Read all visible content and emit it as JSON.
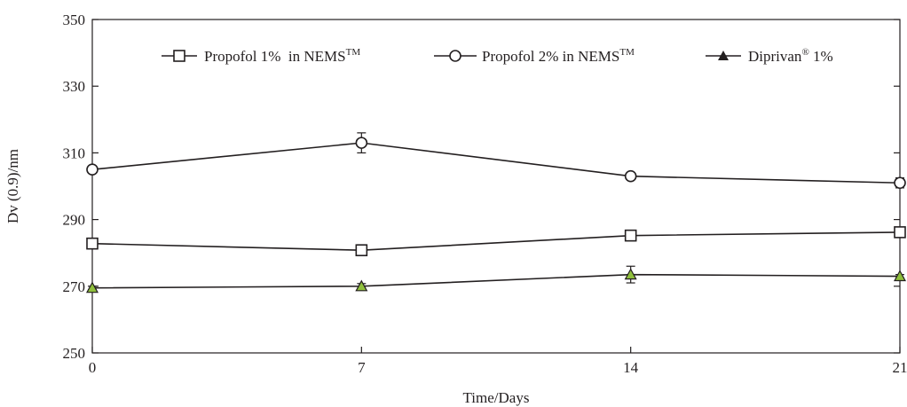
{
  "chart_data": {
    "type": "line",
    "title": "",
    "xlabel": "Time/Days",
    "ylabel": "Dv (0.9)/nm",
    "x": [
      0,
      7,
      14,
      21
    ],
    "x_ticks": [
      "0",
      "7",
      "14",
      "21"
    ],
    "y_ticks": [
      "250",
      "270",
      "290",
      "310",
      "330",
      "350"
    ],
    "xlim": [
      0,
      21
    ],
    "ylim": [
      250,
      350
    ],
    "grid": false,
    "legend_position": "top",
    "series": [
      {
        "name": "Propofol 1%  in NEMS",
        "name_sup": "TM",
        "marker": "square",
        "marker_fill": "#ffffff",
        "color": "#231f20",
        "values": [
          282.8,
          280.8,
          285.2,
          286.2
        ],
        "errors": [
          0.8,
          0.8,
          0.8,
          0.8
        ]
      },
      {
        "name": "Propofol 2% in NEMS",
        "name_sup": "TM",
        "marker": "circle",
        "marker_fill": "#ffffff",
        "color": "#231f20",
        "values": [
          305.0,
          313.0,
          303.0,
          301.0
        ],
        "errors": [
          1.0,
          3.0,
          0.8,
          1.5
        ]
      },
      {
        "name": "Diprivan",
        "name_sup": "®",
        "name_suffix": " 1%",
        "marker": "triangle",
        "marker_fill": "#8fbf3c",
        "color": "#231f20",
        "values": [
          269.5,
          270.0,
          273.5,
          273.0
        ],
        "errors": [
          0.5,
          0.8,
          2.5,
          0.5
        ]
      }
    ]
  }
}
